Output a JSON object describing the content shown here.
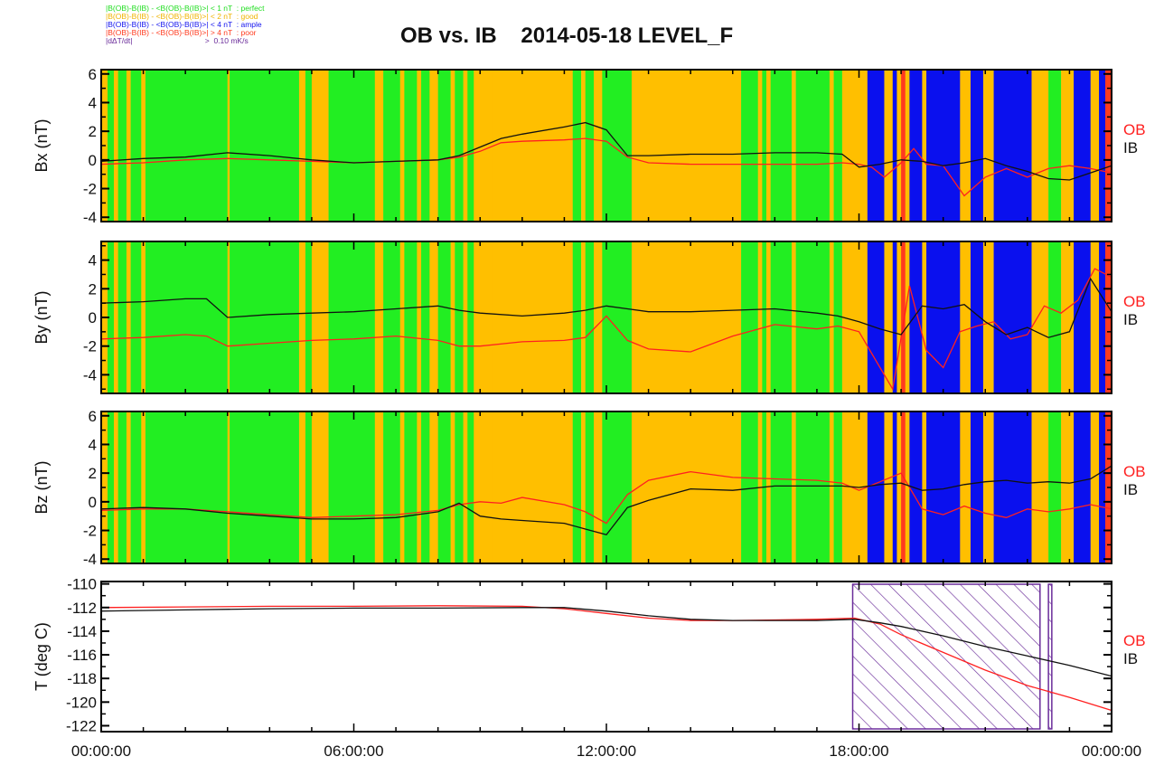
{
  "figure": {
    "title": "OB vs. IB    2014-05-18 LEVEL_F",
    "legend": [
      {
        "text": "|B(OB)-B(IB) - <B(OB)-B(IB)>| < 1 nT  : perfect",
        "color": "#22dd22"
      },
      {
        "text": "|B(OB)-B(IB) - <B(OB)-B(IB)>| < 2 nT  : good",
        "color": "#f0b400"
      },
      {
        "text": "|B(OB)-B(IB) - <B(OB)-B(IB)>| < 4 nT  : ample",
        "color": "#1515ee"
      },
      {
        "text": "|B(OB)-B(IB) - <B(OB)-B(IB)>| > 4 nT  : poor",
        "color": "#ff3b1f"
      },
      {
        "text": "|dΔT/dt|                                  >  0.10 mK/s",
        "color": "#6a2c9a"
      }
    ],
    "colors": {
      "perfect": "#22ee22",
      "good": "#ffbf00",
      "ample": "#0a10ee",
      "poor": "#ff3b1f",
      "ob_line": "#ff2020",
      "ib_line": "#111111",
      "hatch": "#6a2c9a"
    },
    "x_tick_labels": [
      "00:00:00",
      "06:00:00",
      "12:00:00",
      "18:00:00",
      "00:00:00"
    ]
  },
  "chart_data": [
    {
      "type": "line",
      "ylabel": "Bx (nT)",
      "ylim": [
        -4.3,
        6.3
      ],
      "yticks": [
        6,
        4,
        2,
        0,
        -2,
        -4
      ],
      "xlim_hours": [
        0,
        24
      ],
      "series": [
        {
          "name": "OB",
          "x": [
            0,
            1,
            2,
            3,
            4,
            5,
            6,
            7,
            8,
            8.5,
            9,
            9.5,
            10,
            11,
            11.5,
            12,
            12.5,
            13,
            14,
            15,
            16,
            17,
            17.6,
            18,
            18.3,
            18.6,
            19,
            19.3,
            19.6,
            20,
            20.5,
            21,
            21.5,
            22,
            22.5,
            23,
            23.5,
            24
          ],
          "y": [
            -0.3,
            -0.2,
            0,
            0.1,
            0,
            -0.1,
            -0.2,
            -0.1,
            0,
            0.2,
            0.6,
            1.2,
            1.3,
            1.4,
            1.5,
            1.3,
            0.2,
            -0.2,
            -0.3,
            -0.3,
            -0.3,
            -0.3,
            -0.2,
            -0.3,
            -0.5,
            -1.2,
            -0.2,
            0.8,
            -0.3,
            -0.4,
            -2.5,
            -1.2,
            -0.6,
            -1.2,
            -0.6,
            -0.4,
            -0.6,
            -0.9
          ]
        },
        {
          "name": "IB",
          "x": [
            0,
            1,
            2,
            3,
            4,
            5,
            6,
            7,
            8,
            8.5,
            9,
            9.5,
            10,
            11,
            11.5,
            12,
            12.5,
            13,
            14,
            15,
            16,
            17,
            17.6,
            18,
            18.5,
            19,
            19.5,
            20,
            20.5,
            21,
            21.5,
            22,
            22.5,
            23,
            23.5,
            24
          ],
          "y": [
            -0.1,
            0.1,
            0.2,
            0.5,
            0.3,
            0,
            -0.2,
            -0.1,
            0,
            0.3,
            0.9,
            1.5,
            1.8,
            2.3,
            2.6,
            2.1,
            0.3,
            0.3,
            0.4,
            0.4,
            0.5,
            0.5,
            0.4,
            -0.5,
            -0.3,
            0,
            -0.1,
            -0.4,
            -0.2,
            0.1,
            -0.4,
            -0.8,
            -1.3,
            -1.4,
            -0.9,
            -0.4
          ]
        }
      ]
    },
    {
      "type": "line",
      "ylabel": "By (nT)",
      "ylim": [
        -5.3,
        5.3
      ],
      "yticks": [
        4,
        2,
        0,
        -2,
        -4
      ],
      "xlim_hours": [
        0,
        24
      ],
      "series": [
        {
          "name": "OB",
          "x": [
            0,
            1,
            2,
            2.5,
            3,
            4,
            5,
            6,
            7,
            8,
            8.5,
            9,
            10,
            11,
            11.5,
            12,
            12.5,
            13,
            14,
            15,
            16,
            17,
            17.5,
            18,
            18.4,
            18.8,
            19.2,
            19.6,
            20,
            20.4,
            20.8,
            21.2,
            21.6,
            22,
            22.4,
            22.8,
            23.2,
            23.6,
            24
          ],
          "y": [
            -1.5,
            -1.4,
            -1.2,
            -1.3,
            -2.0,
            -1.8,
            -1.6,
            -1.5,
            -1.3,
            -1.6,
            -2.0,
            -2.0,
            -1.7,
            -1.6,
            -1.4,
            0.1,
            -1.6,
            -2.2,
            -2.4,
            -1.3,
            -0.5,
            -0.8,
            -0.6,
            -1.0,
            -3.0,
            -5.0,
            2.2,
            -2.3,
            -3.5,
            -1.0,
            -0.6,
            -0.3,
            -1.5,
            -1.2,
            0.8,
            0.3,
            1.2,
            3.4,
            2.8
          ]
        },
        {
          "name": "IB",
          "x": [
            0,
            1,
            2,
            2.5,
            3,
            4,
            5,
            6,
            7,
            8,
            8.5,
            9,
            10,
            11,
            11.5,
            12,
            12.5,
            13,
            14,
            15,
            16,
            17,
            17.5,
            18,
            18.5,
            19,
            19.5,
            20,
            20.5,
            21,
            21.5,
            22,
            22.5,
            23,
            23.5,
            24
          ],
          "y": [
            1.0,
            1.1,
            1.3,
            1.3,
            0.0,
            0.2,
            0.3,
            0.4,
            0.6,
            0.8,
            0.5,
            0.3,
            0.1,
            0.3,
            0.5,
            0.8,
            0.6,
            0.4,
            0.4,
            0.5,
            0.6,
            0.3,
            0.1,
            -0.3,
            -0.8,
            -1.2,
            0.8,
            0.6,
            0.9,
            -0.3,
            -1.2,
            -0.7,
            -1.4,
            -1.0,
            2.7,
            0.4
          ]
        }
      ]
    },
    {
      "type": "line",
      "ylabel": "Bz (nT)",
      "ylim": [
        -4.3,
        6.3
      ],
      "yticks": [
        6,
        4,
        2,
        0,
        -2,
        -4
      ],
      "xlim_hours": [
        0,
        24
      ],
      "series": [
        {
          "name": "OB",
          "x": [
            0,
            1,
            2,
            3,
            4,
            5,
            6,
            7,
            8,
            8.5,
            9,
            9.5,
            10,
            11,
            11.5,
            12,
            12.5,
            13,
            14,
            15,
            16,
            17,
            17.6,
            18,
            18.5,
            19,
            19.5,
            20,
            20.5,
            21,
            21.5,
            22,
            22.5,
            23,
            23.5,
            24
          ],
          "y": [
            -0.6,
            -0.5,
            -0.5,
            -0.7,
            -0.9,
            -1.1,
            -1.0,
            -0.9,
            -0.6,
            -0.2,
            0.0,
            -0.1,
            0.3,
            -0.2,
            -0.7,
            -1.5,
            0.5,
            1.5,
            2.1,
            1.7,
            1.6,
            1.5,
            1.3,
            0.8,
            1.4,
            2.0,
            -0.5,
            -0.9,
            -0.3,
            -0.8,
            -1.1,
            -0.5,
            -0.7,
            -0.5,
            -0.2,
            -0.5
          ]
        },
        {
          "name": "IB",
          "x": [
            0,
            1,
            2,
            3,
            4,
            5,
            6,
            7,
            8,
            8.5,
            9,
            9.5,
            10,
            11,
            11.5,
            12,
            12.5,
            13,
            14,
            15,
            16,
            17,
            17.6,
            18,
            18.5,
            19,
            19.5,
            20,
            20.5,
            21,
            21.5,
            22,
            22.5,
            23,
            23.5,
            24
          ],
          "y": [
            -0.5,
            -0.4,
            -0.5,
            -0.8,
            -1.0,
            -1.2,
            -1.2,
            -1.1,
            -0.7,
            -0.1,
            -1.0,
            -1.2,
            -1.3,
            -1.5,
            -1.9,
            -2.3,
            -0.4,
            0.1,
            0.9,
            0.8,
            1.1,
            1.1,
            1.1,
            1.0,
            1.2,
            1.3,
            0.8,
            0.9,
            1.2,
            1.4,
            1.5,
            1.3,
            1.4,
            1.3,
            1.6,
            2.5
          ]
        }
      ]
    },
    {
      "type": "line",
      "ylabel": "T (deg C)",
      "ylim": [
        -122.5,
        -109.8
      ],
      "yticks": [
        -110,
        -112,
        -114,
        -116,
        -118,
        -120,
        -122
      ],
      "xlim_hours": [
        0,
        24
      ],
      "series": [
        {
          "name": "OB",
          "x": [
            0,
            2,
            4,
            6,
            8,
            10,
            11,
            12,
            13,
            14,
            15,
            16,
            17,
            17.9,
            18.5,
            19,
            20,
            21,
            22,
            23,
            24
          ],
          "y": [
            -112,
            -111.95,
            -111.9,
            -111.9,
            -111.85,
            -111.9,
            -112.1,
            -112.5,
            -112.9,
            -113.1,
            -113.1,
            -113.05,
            -113,
            -112.9,
            -113.4,
            -114.3,
            -115.8,
            -117.3,
            -118.6,
            -119.6,
            -120.7
          ]
        },
        {
          "name": "IB",
          "x": [
            0,
            2,
            4,
            6,
            8,
            10,
            11,
            12,
            13,
            14,
            15,
            16,
            17,
            17.9,
            18.5,
            19,
            20,
            21,
            22,
            23,
            24
          ],
          "y": [
            -112.3,
            -112.2,
            -112.1,
            -112.05,
            -112.05,
            -112.0,
            -112.0,
            -112.3,
            -112.7,
            -113.0,
            -113.1,
            -113.1,
            -113.1,
            -113.0,
            -113.3,
            -113.6,
            -114.4,
            -115.3,
            -116.1,
            -116.9,
            -117.8
          ]
        }
      ],
      "hatched_intervals_hours": [
        [
          17.85,
          22.3
        ],
        [
          22.5,
          22.58
        ]
      ]
    }
  ],
  "quality_segments_hours": [
    [
      0,
      0.15,
      "good"
    ],
    [
      0.15,
      0.3,
      "perfect"
    ],
    [
      0.3,
      0.4,
      "good"
    ],
    [
      0.4,
      0.6,
      "perfect"
    ],
    [
      0.6,
      0.7,
      "good"
    ],
    [
      0.7,
      0.95,
      "perfect"
    ],
    [
      0.95,
      1.05,
      "good"
    ],
    [
      1.05,
      3.0,
      "perfect"
    ],
    [
      3.0,
      3.05,
      "good"
    ],
    [
      3.05,
      4.7,
      "perfect"
    ],
    [
      4.7,
      4.85,
      "good"
    ],
    [
      4.85,
      5.0,
      "perfect"
    ],
    [
      5.0,
      5.4,
      "good"
    ],
    [
      5.4,
      6.5,
      "perfect"
    ],
    [
      6.5,
      6.7,
      "good"
    ],
    [
      6.7,
      7.1,
      "perfect"
    ],
    [
      7.1,
      7.2,
      "good"
    ],
    [
      7.2,
      7.5,
      "perfect"
    ],
    [
      7.5,
      7.6,
      "good"
    ],
    [
      7.6,
      7.8,
      "perfect"
    ],
    [
      7.8,
      8.0,
      "good"
    ],
    [
      8.0,
      8.3,
      "perfect"
    ],
    [
      8.3,
      8.4,
      "good"
    ],
    [
      8.4,
      8.6,
      "perfect"
    ],
    [
      8.6,
      8.7,
      "good"
    ],
    [
      8.7,
      8.85,
      "perfect"
    ],
    [
      8.85,
      9.3,
      "good"
    ],
    [
      9.3,
      11.2,
      "good"
    ],
    [
      11.2,
      11.4,
      "perfect"
    ],
    [
      11.4,
      11.5,
      "good"
    ],
    [
      11.5,
      11.7,
      "perfect"
    ],
    [
      11.7,
      11.9,
      "good"
    ],
    [
      11.9,
      12.6,
      "perfect"
    ],
    [
      12.6,
      15.2,
      "good"
    ],
    [
      15.2,
      15.6,
      "perfect"
    ],
    [
      15.6,
      15.7,
      "good"
    ],
    [
      15.7,
      15.8,
      "perfect"
    ],
    [
      15.8,
      15.9,
      "good"
    ],
    [
      15.9,
      16.4,
      "perfect"
    ],
    [
      16.4,
      16.5,
      "good"
    ],
    [
      16.5,
      17.3,
      "perfect"
    ],
    [
      17.3,
      17.4,
      "good"
    ],
    [
      17.4,
      17.6,
      "perfect"
    ],
    [
      17.6,
      18.2,
      "good"
    ],
    [
      18.2,
      18.6,
      "ample"
    ],
    [
      18.6,
      18.8,
      "good"
    ],
    [
      18.8,
      18.9,
      "ample"
    ],
    [
      18.9,
      19.0,
      "good"
    ],
    [
      19.0,
      19.1,
      "poor"
    ],
    [
      19.1,
      19.2,
      "good"
    ],
    [
      19.2,
      19.5,
      "ample"
    ],
    [
      19.5,
      19.6,
      "good"
    ],
    [
      19.6,
      20.4,
      "ample"
    ],
    [
      20.4,
      20.65,
      "good"
    ],
    [
      20.65,
      20.95,
      "ample"
    ],
    [
      20.95,
      21.2,
      "good"
    ],
    [
      21.2,
      22.1,
      "ample"
    ],
    [
      22.1,
      22.5,
      "good"
    ],
    [
      22.5,
      22.8,
      "perfect"
    ],
    [
      22.8,
      23.1,
      "good"
    ],
    [
      23.1,
      23.5,
      "ample"
    ],
    [
      23.5,
      23.7,
      "good"
    ],
    [
      23.7,
      23.85,
      "ample"
    ],
    [
      23.85,
      24.0,
      "poor"
    ]
  ]
}
